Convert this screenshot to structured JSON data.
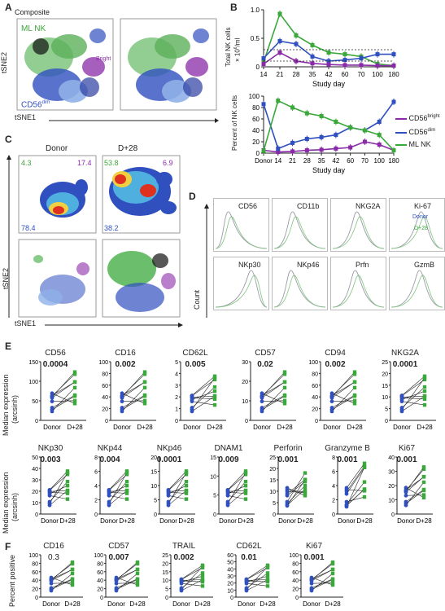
{
  "panels": {
    "A": {
      "letter": "A",
      "composite_label": "Composite",
      "ml_nk_label": "ML NK",
      "bright_label": "Bright",
      "cd56dim_label": "CD56",
      "cd56dim_sup": "dim",
      "x_axis": "tSNE1",
      "y_axis": "tSNE2",
      "colors": {
        "ml_nk": "#3aa83a",
        "dim": "#3050c0",
        "bright": "#8a2aa8",
        "black": "#111111"
      }
    },
    "B": {
      "letter": "B",
      "top_ylabel_line1": "Total NK cells",
      "top_ylabel_line2": "× 10",
      "top_ylabel_sup": "6",
      "top_ylabel_unit": "/ml",
      "bottom_ylabel": "Percent of NK cells",
      "xlabel": "Study day",
      "legend": [
        {
          "label": "CD56",
          "sup": "bright",
          "color": "#8a2aa8"
        },
        {
          "label": "CD56",
          "sup": "dim",
          "color": "#3050c0"
        },
        {
          "label": "ML NK",
          "sup": "",
          "color": "#3aa83a"
        }
      ]
    },
    "C": {
      "letter": "C",
      "donor_label": "Donor",
      "d28_label": "D+28",
      "donor_vals": {
        "green": "4.3",
        "purple": "17.4",
        "blue": "78.4"
      },
      "d28_vals": {
        "green": "53.8",
        "purple": "6.9",
        "blue": "38.2"
      },
      "x_axis": "tSNE1",
      "y_axis": "tSNE2"
    },
    "D": {
      "letter": "D",
      "y_axis": "Count",
      "markers_row1": [
        "CD56",
        "CD11b",
        "NKG2A",
        "Ki-67"
      ],
      "markers_row2": [
        "NKp30",
        "NKp46",
        "Prfn",
        "GzmB"
      ],
      "legend_donor": "Donor",
      "legend_d28": "D+28"
    },
    "E": {
      "letter": "E",
      "ylabel1": "Median expression",
      "ylabel2": "(arcsinh)",
      "xcats": [
        "Donor",
        "D+28"
      ],
      "row1": [
        {
          "marker": "CD56",
          "p": "0.0004",
          "ticks": [
            "150",
            "100",
            "50",
            "0"
          ]
        },
        {
          "marker": "CD16",
          "p": "0.002",
          "ticks": [
            "100",
            "80",
            "60",
            "40",
            "20",
            "0"
          ]
        },
        {
          "marker": "CD62L",
          "p": "0.005",
          "ticks": [
            "5",
            "4",
            "3",
            "2",
            "1",
            "0"
          ]
        },
        {
          "marker": "CD57",
          "p": "0.02",
          "ticks": [
            "30",
            "20",
            "10",
            "0"
          ]
        },
        {
          "marker": "CD94",
          "p": "0.002",
          "ticks": [
            "100",
            "80",
            "60",
            "40",
            "20",
            "0"
          ]
        },
        {
          "marker": "NKG2A",
          "p": "0.0001",
          "ticks": [
            "25",
            "20",
            "15",
            "10",
            "5",
            "0"
          ]
        }
      ],
      "row2": [
        {
          "marker": "NKp30",
          "p": "0.003",
          "ticks": [
            "50",
            "40",
            "30",
            "20",
            "10",
            "0"
          ]
        },
        {
          "marker": "NKp44",
          "p": "0.004",
          "ticks": [
            "8",
            "6",
            "4",
            "2",
            "0"
          ]
        },
        {
          "marker": "NKp46",
          "p": "0.0001",
          "ticks": [
            "20",
            "15",
            "10",
            "5",
            "0"
          ]
        },
        {
          "marker": "DNAM1",
          "p": "0.009",
          "ticks": [
            "15",
            "10",
            "5",
            "0"
          ]
        },
        {
          "marker": "Perforin",
          "p": "0.001",
          "ticks": [
            "25",
            "20",
            "15",
            "10",
            "5",
            "0"
          ]
        },
        {
          "marker": "Granzyme B",
          "p": "0.001",
          "ticks": [
            "8",
            "6",
            "4",
            "2",
            "0"
          ]
        },
        {
          "marker": "Ki67",
          "p": "0.001",
          "ticks": [
            "40",
            "30",
            "20",
            "10",
            "0"
          ]
        }
      ]
    },
    "F": {
      "letter": "F",
      "ylabel": "Percent positive",
      "xcats": [
        "Donor",
        "D+28"
      ],
      "items": [
        {
          "marker": "CD16",
          "p": "0.3",
          "bold": false,
          "ticks": [
            "100",
            "80",
            "60",
            "40",
            "20",
            "0"
          ]
        },
        {
          "marker": "CD57",
          "p": "0.007",
          "bold": true,
          "ticks": [
            "100",
            "80",
            "60",
            "40",
            "20",
            "0"
          ]
        },
        {
          "marker": "TRAIL",
          "p": "0.002",
          "bold": true,
          "ticks": [
            "25",
            "20",
            "15",
            "10",
            "5",
            "0"
          ]
        },
        {
          "marker": "CD62L",
          "p": "0.01",
          "bold": true,
          "ticks": [
            "60",
            "50",
            "40",
            "30",
            "20",
            "10",
            "0"
          ]
        },
        {
          "marker": "Ki67",
          "p": "0.001",
          "bold": true,
          "ticks": [
            "100",
            "80",
            "60",
            "40",
            "20",
            "0"
          ]
        }
      ]
    }
  },
  "chart_data": [
    {
      "type": "line",
      "panel": "B-top",
      "x": [
        "14",
        "21",
        "28",
        "35",
        "42",
        "60",
        "70",
        "100",
        "180"
      ],
      "ylim": [
        0,
        1.0
      ],
      "yticks": [
        "1.0",
        "0.5",
        "0"
      ],
      "series": [
        {
          "name": "ML NK",
          "color": "#3aa83a",
          "values": [
            0.08,
            0.93,
            0.55,
            0.38,
            0.25,
            0.22,
            0.18,
            0.05,
            0.02
          ]
        },
        {
          "name": "CD56 dim",
          "color": "#3050c0",
          "values": [
            0.15,
            0.45,
            0.4,
            0.18,
            0.1,
            0.12,
            0.15,
            0.22,
            0.22
          ]
        },
        {
          "name": "CD56 bright",
          "color": "#8a2aa8",
          "values": [
            0.05,
            0.25,
            0.1,
            0.06,
            0.04,
            0.03,
            0.03,
            0.02,
            0.02
          ]
        }
      ],
      "xlabel": "Study day"
    },
    {
      "type": "line",
      "panel": "B-bottom",
      "x": [
        "Donor",
        "14",
        "21",
        "28",
        "35",
        "42",
        "60",
        "70",
        "100",
        "180"
      ],
      "ylim": [
        0,
        100
      ],
      "yticks": [
        "100",
        "80",
        "60",
        "40",
        "20",
        "0"
      ],
      "series": [
        {
          "name": "CD56 bright",
          "color": "#8a2aa8",
          "values": [
            5,
            2,
            3,
            5,
            6,
            8,
            10,
            20,
            15,
            5
          ]
        },
        {
          "name": "CD56 dim",
          "color": "#3050c0",
          "values": [
            86,
            8,
            18,
            25,
            28,
            32,
            45,
            40,
            55,
            90
          ]
        },
        {
          "name": "ML NK",
          "color": "#3aa83a",
          "values": [
            4,
            92,
            80,
            70,
            65,
            55,
            45,
            40,
            32,
            5
          ]
        }
      ],
      "xlabel": "Study day"
    }
  ]
}
